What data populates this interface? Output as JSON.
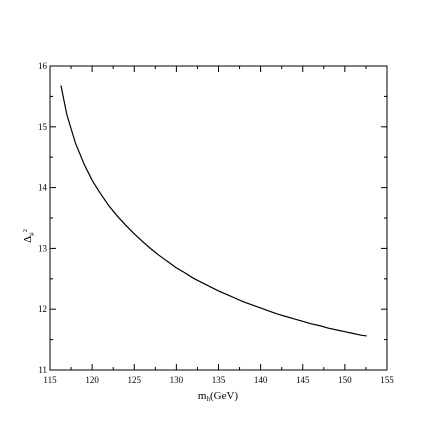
{
  "chart_data": {
    "type": "line",
    "title": "",
    "xlabel_main": "m",
    "xlabel_sub": "h",
    "xlabel_rest": "(GeV)",
    "ylabel_main": "Δ",
    "ylabel_sub": "μ",
    "ylabel_sup": "2",
    "xlim": [
      115,
      155
    ],
    "ylim": [
      11,
      16
    ],
    "x_ticks": [
      "115",
      "120",
      "125",
      "130",
      "135",
      "140",
      "145",
      "150",
      "155"
    ],
    "y_ticks": [
      "11",
      "12",
      "13",
      "14",
      "15",
      "16"
    ],
    "grid": false,
    "series": [
      {
        "color": "#000000",
        "x": [
          116.3,
          117,
          118,
          119,
          120,
          121,
          122,
          123,
          124,
          125,
          126,
          127,
          128,
          129,
          130,
          131,
          132,
          133,
          134,
          135,
          136,
          137,
          138,
          139,
          140,
          141,
          142,
          143,
          144,
          145,
          146,
          147,
          148,
          149,
          150,
          151,
          152,
          152.6
        ],
        "y": [
          15.68,
          15.2,
          14.74,
          14.4,
          14.12,
          13.9,
          13.7,
          13.53,
          13.38,
          13.24,
          13.11,
          12.99,
          12.88,
          12.78,
          12.68,
          12.6,
          12.51,
          12.44,
          12.37,
          12.3,
          12.24,
          12.18,
          12.12,
          12.07,
          12.02,
          11.97,
          11.92,
          11.88,
          11.84,
          11.8,
          11.76,
          11.73,
          11.69,
          11.66,
          11.63,
          11.6,
          11.57,
          11.56
        ]
      }
    ]
  }
}
